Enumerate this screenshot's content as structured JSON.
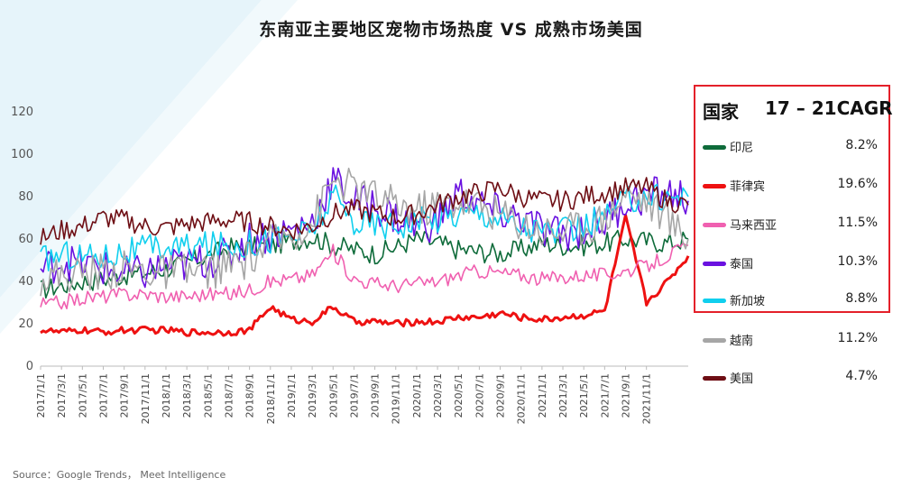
{
  "title": "东南亚主要地区宠物市场热度 VS 成熟市场美国",
  "source": "Source：Google Trends， Meet Intelligence",
  "legend": {
    "header_country": "国家",
    "header_cagr": "17 – 21CAGR"
  },
  "chart_data": {
    "type": "line",
    "title": "东南亚主要地区宠物市场热度 VS 成熟市场美国",
    "xlabel": "",
    "ylabel": "",
    "ylim": [
      0,
      120
    ],
    "yticks": [
      0,
      20,
      40,
      60,
      80,
      100,
      120
    ],
    "grid": false,
    "x_range": [
      "2017/1/1",
      "2022/2/27"
    ],
    "xtick_labels": [
      "2017/1/1",
      "2017/3/1",
      "2017/5/1",
      "2017/7/1",
      "2017/9/1",
      "2017/11/1",
      "2018/1/1",
      "2018/3/1",
      "2018/5/1",
      "2018/7/1",
      "2018/9/1",
      "2018/11/1",
      "2019/1/1",
      "2019/3/1",
      "2019/5/1",
      "2019/7/1",
      "2019/9/1",
      "2019/11/1",
      "2020/1/1",
      "2020/3/1",
      "2020/5/1",
      "2020/7/1",
      "2020/9/1",
      "2020/11/1",
      "2021/1/1",
      "2021/3/1",
      "2021/5/1",
      "2021/7/1",
      "2021/9/1",
      "2021/11/1"
    ],
    "legend_position": "right",
    "series": [
      {
        "name": "印尼",
        "color": "#0e6b3a",
        "cagr": "8.2%",
        "highlighted": true,
        "values": [
          [
            0,
            36
          ],
          [
            2,
            38
          ],
          [
            4,
            40
          ],
          [
            6,
            41
          ],
          [
            8,
            43
          ],
          [
            10,
            44
          ],
          [
            12,
            46
          ],
          [
            14,
            49
          ],
          [
            16,
            52
          ],
          [
            18,
            56
          ],
          [
            20,
            56
          ],
          [
            22,
            57
          ],
          [
            24,
            59
          ],
          [
            26,
            61
          ],
          [
            28,
            57
          ],
          [
            30,
            55
          ],
          [
            32,
            53
          ],
          [
            34,
            56
          ],
          [
            36,
            60
          ],
          [
            38,
            58
          ],
          [
            40,
            55
          ],
          [
            42,
            54
          ],
          [
            44,
            53
          ],
          [
            46,
            55
          ],
          [
            48,
            58
          ],
          [
            50,
            57
          ],
          [
            52,
            57
          ],
          [
            54,
            58
          ],
          [
            56,
            60
          ],
          [
            58,
            59
          ],
          [
            60,
            58
          ],
          [
            62,
            60
          ]
        ]
      },
      {
        "name": "菲律宾",
        "color": "#ee1111",
        "cagr": "19.6%",
        "highlighted": true,
        "values": [
          [
            0,
            17
          ],
          [
            2,
            16
          ],
          [
            4,
            17
          ],
          [
            6,
            16
          ],
          [
            8,
            17
          ],
          [
            10,
            17
          ],
          [
            12,
            17
          ],
          [
            14,
            16
          ],
          [
            16,
            16
          ],
          [
            18,
            16
          ],
          [
            20,
            17
          ],
          [
            22,
            28
          ],
          [
            24,
            22
          ],
          [
            26,
            21
          ],
          [
            28,
            28
          ],
          [
            30,
            21
          ],
          [
            32,
            21
          ],
          [
            34,
            20
          ],
          [
            36,
            21
          ],
          [
            38,
            21
          ],
          [
            40,
            23
          ],
          [
            42,
            23
          ],
          [
            44,
            25
          ],
          [
            46,
            23
          ],
          [
            48,
            22
          ],
          [
            50,
            23
          ],
          [
            52,
            24
          ],
          [
            54,
            26
          ],
          [
            56,
            70
          ],
          [
            58,
            30
          ],
          [
            60,
            40
          ],
          [
            62,
            52
          ]
        ]
      },
      {
        "name": "马来西亚",
        "color": "#f060b0",
        "cagr": "11.5%",
        "highlighted": true,
        "values": [
          [
            0,
            29
          ],
          [
            2,
            30
          ],
          [
            4,
            32
          ],
          [
            6,
            33
          ],
          [
            8,
            34
          ],
          [
            10,
            34
          ],
          [
            12,
            33
          ],
          [
            14,
            33
          ],
          [
            16,
            34
          ],
          [
            18,
            34
          ],
          [
            20,
            36
          ],
          [
            22,
            40
          ],
          [
            24,
            41
          ],
          [
            26,
            43
          ],
          [
            28,
            54
          ],
          [
            30,
            41
          ],
          [
            32,
            39
          ],
          [
            34,
            38
          ],
          [
            36,
            39
          ],
          [
            38,
            40
          ],
          [
            40,
            43
          ],
          [
            42,
            45
          ],
          [
            44,
            44
          ],
          [
            46,
            43
          ],
          [
            48,
            41
          ],
          [
            50,
            42
          ],
          [
            52,
            43
          ],
          [
            54,
            43
          ],
          [
            56,
            45
          ],
          [
            58,
            47
          ],
          [
            60,
            52
          ],
          [
            62,
            57
          ]
        ]
      },
      {
        "name": "泰国",
        "color": "#6a11e0",
        "cagr": "10.3%",
        "highlighted": true,
        "values": [
          [
            0,
            45
          ],
          [
            2,
            50
          ],
          [
            4,
            48
          ],
          [
            6,
            46
          ],
          [
            8,
            43
          ],
          [
            10,
            44
          ],
          [
            12,
            47
          ],
          [
            14,
            48
          ],
          [
            16,
            50
          ],
          [
            18,
            52
          ],
          [
            20,
            60
          ],
          [
            22,
            62
          ],
          [
            24,
            64
          ],
          [
            26,
            68
          ],
          [
            28,
            88
          ],
          [
            30,
            78
          ],
          [
            32,
            76
          ],
          [
            34,
            70
          ],
          [
            36,
            66
          ],
          [
            38,
            68
          ],
          [
            40,
            82
          ],
          [
            42,
            76
          ],
          [
            44,
            72
          ],
          [
            46,
            70
          ],
          [
            48,
            64
          ],
          [
            50,
            62
          ],
          [
            52,
            65
          ],
          [
            54,
            68
          ],
          [
            56,
            78
          ],
          [
            58,
            80
          ],
          [
            60,
            82
          ],
          [
            62,
            78
          ]
        ]
      },
      {
        "name": "新加坡",
        "color": "#10cfee",
        "cagr": "8.8%",
        "highlighted": true,
        "values": [
          [
            0,
            50
          ],
          [
            2,
            53
          ],
          [
            4,
            52
          ],
          [
            6,
            52
          ],
          [
            8,
            54
          ],
          [
            10,
            55
          ],
          [
            12,
            56
          ],
          [
            14,
            56
          ],
          [
            16,
            57
          ],
          [
            18,
            57
          ],
          [
            20,
            58
          ],
          [
            22,
            60
          ],
          [
            24,
            61
          ],
          [
            26,
            64
          ],
          [
            28,
            80
          ],
          [
            30,
            68
          ],
          [
            32,
            67
          ],
          [
            34,
            67
          ],
          [
            36,
            68
          ],
          [
            38,
            70
          ],
          [
            40,
            72
          ],
          [
            42,
            73
          ],
          [
            44,
            70
          ],
          [
            46,
            66
          ],
          [
            48,
            64
          ],
          [
            50,
            63
          ],
          [
            52,
            66
          ],
          [
            54,
            70
          ],
          [
            56,
            78
          ],
          [
            58,
            80
          ],
          [
            60,
            80
          ],
          [
            62,
            80
          ]
        ]
      },
      {
        "name": "越南",
        "color": "#a6a6a6",
        "cagr": "11.2%",
        "highlighted": false,
        "values": [
          [
            0,
            42
          ],
          [
            2,
            43
          ],
          [
            4,
            44
          ],
          [
            6,
            45
          ],
          [
            8,
            46
          ],
          [
            10,
            45
          ],
          [
            12,
            44
          ],
          [
            14,
            44
          ],
          [
            16,
            45
          ],
          [
            18,
            47
          ],
          [
            20,
            50
          ],
          [
            22,
            58
          ],
          [
            24,
            62
          ],
          [
            26,
            68
          ],
          [
            28,
            88
          ],
          [
            30,
            84
          ],
          [
            32,
            80
          ],
          [
            34,
            76
          ],
          [
            36,
            74
          ],
          [
            38,
            76
          ],
          [
            40,
            78
          ],
          [
            42,
            76
          ],
          [
            44,
            72
          ],
          [
            46,
            68
          ],
          [
            48,
            64
          ],
          [
            50,
            64
          ],
          [
            52,
            66
          ],
          [
            54,
            70
          ],
          [
            56,
            82
          ],
          [
            58,
            78
          ],
          [
            60,
            70
          ],
          [
            62,
            60
          ]
        ]
      },
      {
        "name": "美国",
        "color": "#6e0e14",
        "cagr": "4.7%",
        "highlighted": false,
        "values": [
          [
            0,
            60
          ],
          [
            2,
            64
          ],
          [
            4,
            66
          ],
          [
            6,
            70
          ],
          [
            8,
            69
          ],
          [
            10,
            66
          ],
          [
            12,
            65
          ],
          [
            14,
            67
          ],
          [
            16,
            68
          ],
          [
            18,
            69
          ],
          [
            20,
            68
          ],
          [
            22,
            66
          ],
          [
            24,
            64
          ],
          [
            26,
            66
          ],
          [
            28,
            72
          ],
          [
            30,
            74
          ],
          [
            32,
            72
          ],
          [
            34,
            70
          ],
          [
            36,
            72
          ],
          [
            38,
            76
          ],
          [
            40,
            80
          ],
          [
            42,
            82
          ],
          [
            44,
            84
          ],
          [
            46,
            80
          ],
          [
            48,
            78
          ],
          [
            50,
            78
          ],
          [
            52,
            80
          ],
          [
            54,
            82
          ],
          [
            56,
            84
          ],
          [
            58,
            84
          ],
          [
            60,
            78
          ],
          [
            62,
            76
          ]
        ]
      }
    ]
  }
}
